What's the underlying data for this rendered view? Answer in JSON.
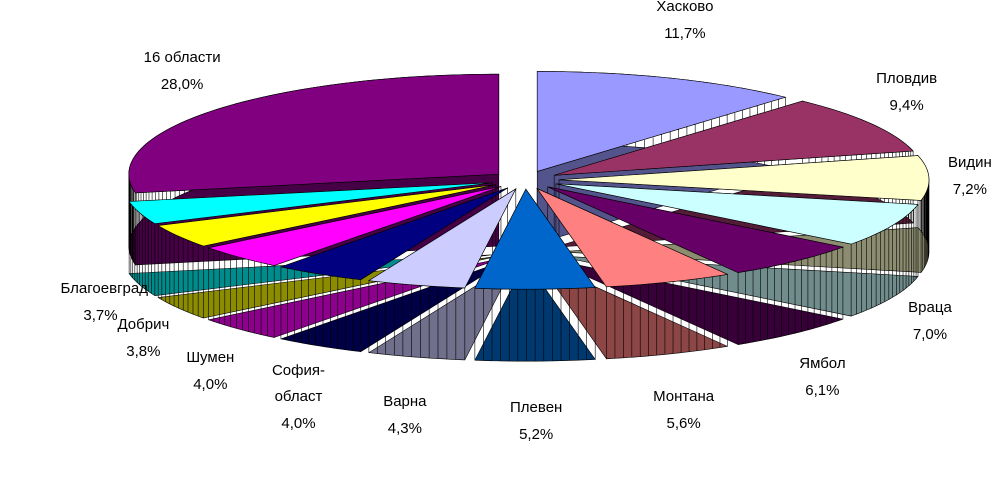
{
  "chart_data": {
    "type": "pie3d",
    "categories": [
      "Хасково",
      "Пловдив",
      "Видин",
      "Враца",
      "Ямбол",
      "Монтана",
      "Плевен",
      "Варна",
      "София-област",
      "Шумен",
      "Добрич",
      "Благоевград",
      "16 области"
    ],
    "values": [
      11.7,
      9.4,
      7.2,
      7.0,
      6.1,
      5.6,
      5.2,
      4.3,
      4.0,
      4.0,
      3.8,
      3.7,
      28.0
    ],
    "value_labels": [
      "11,7%",
      "9,4%",
      "7,2%",
      "7,0%",
      "6,1%",
      "5,6%",
      "5,2%",
      "4,3%",
      "4,0%",
      "4,0%",
      "3,8%",
      "3,7%",
      "28,0%"
    ],
    "colors": [
      "#9999ff",
      "#993366",
      "#ffffcc",
      "#ccffff",
      "#660066",
      "#ff8080",
      "#0066cc",
      "#ccccff",
      "#000080",
      "#ff00ff",
      "#ffff00",
      "#00ffff",
      "#800080"
    ]
  }
}
